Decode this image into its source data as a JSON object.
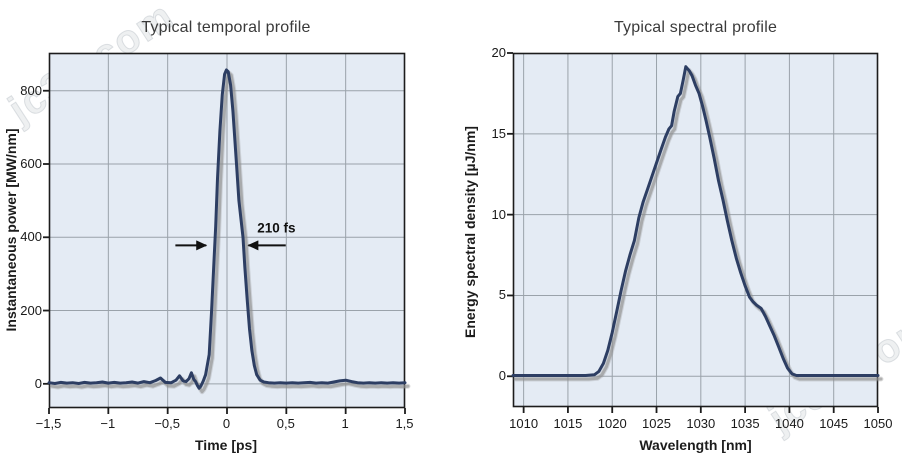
{
  "watermarks": [
    {
      "text": "jc35.com"
    },
    {
      "text": "jc35.com"
    }
  ],
  "colors": {
    "plot_background": "#e4ebf4",
    "grid": "#9aa2aa",
    "border": "#1c1c1c",
    "curve": "#2d3e63",
    "curve_shadow": "#8f8f8f",
    "text": "#1c1c1c",
    "title": "#3a3a3a",
    "annotation": "#111111"
  },
  "chart_data": [
    {
      "type": "line",
      "title": "Typical temporal profile",
      "xlabel": "Time [ps]",
      "ylabel": "Instantaneous power [MW/nm]",
      "xlim": [
        -1.5,
        1.5
      ],
      "ylim": [
        -66,
        903
      ],
      "grid": true,
      "legend": "none",
      "xticks": {
        "values": [
          -1.5,
          -1,
          -0.5,
          0,
          0.5,
          1,
          1.5
        ],
        "labels": [
          "−1,5",
          "−1",
          "−0,5",
          "0",
          "0,5",
          "1",
          "1,5"
        ]
      },
      "yticks": {
        "values": [
          0,
          200,
          400,
          600,
          800
        ],
        "labels": [
          "0",
          "200",
          "400",
          "600",
          "800"
        ]
      },
      "series": [
        {
          "name": "instantaneous-power",
          "x": [
            -1.5,
            -1.45,
            -1.4,
            -1.35,
            -1.3,
            -1.25,
            -1.2,
            -1.15,
            -1.1,
            -1.05,
            -1.0,
            -0.95,
            -0.9,
            -0.85,
            -0.8,
            -0.75,
            -0.7,
            -0.65,
            -0.6,
            -0.56,
            -0.52,
            -0.47,
            -0.43,
            -0.4,
            -0.37,
            -0.345,
            -0.32,
            -0.3,
            -0.28,
            -0.265,
            -0.25,
            -0.235,
            -0.22,
            -0.2,
            -0.18,
            -0.15,
            -0.13,
            -0.11,
            -0.095,
            -0.08,
            -0.06,
            -0.04,
            -0.02,
            -0.005,
            0.01,
            0.03,
            0.05,
            0.08,
            0.1,
            0.135,
            0.15,
            0.17,
            0.19,
            0.21,
            0.23,
            0.25,
            0.28,
            0.31,
            0.35,
            0.4,
            0.45,
            0.5,
            0.55,
            0.6,
            0.65,
            0.7,
            0.75,
            0.8,
            0.85,
            0.9,
            0.95,
            1.0,
            1.05,
            1.1,
            1.15,
            1.2,
            1.25,
            1.3,
            1.35,
            1.4,
            1.45,
            1.5
          ],
          "y": [
            3,
            1,
            4,
            2,
            3,
            1,
            4,
            2,
            3,
            5,
            2,
            4,
            2,
            3,
            5,
            2,
            6,
            3,
            9,
            16,
            4,
            3,
            10,
            22,
            8,
            6,
            14,
            30,
            12,
            6,
            -4,
            -12,
            -6,
            8,
            25,
            80,
            200,
            330,
            430,
            560,
            690,
            790,
            845,
            857,
            852,
            815,
            745,
            600,
            500,
            400,
            320,
            230,
            150,
            90,
            50,
            25,
            10,
            5,
            3,
            2,
            3,
            2,
            3,
            2,
            3,
            4,
            2,
            3,
            2,
            5,
            8,
            10,
            6,
            3,
            2,
            3,
            2,
            3,
            2,
            3,
            2,
            3
          ]
        }
      ],
      "annotation": {
        "text": "210 fs",
        "text_at": {
          "x": 0.42,
          "y": 424
        },
        "arrows": [
          {
            "from": {
              "x": -0.435,
              "y": 378
            },
            "to": {
              "x": -0.175,
              "y": 378
            }
          },
          {
            "from": {
              "x": 0.495,
              "y": 378
            },
            "to": {
              "x": 0.18,
              "y": 378
            }
          }
        ]
      }
    },
    {
      "type": "line",
      "title": "Typical spectral profile",
      "xlabel": "Wavelength [nm]",
      "ylabel": "Energy spectral density [µJ/nm]",
      "xlim": [
        1008.8,
        1050
      ],
      "ylim": [
        -1.9,
        20
      ],
      "grid": true,
      "legend": "none",
      "xticks": {
        "values": [
          1010,
          1015,
          1020,
          1025,
          1030,
          1035,
          1040,
          1045,
          1050
        ],
        "labels": [
          "1010",
          "1015",
          "1020",
          "1025",
          "1030",
          "1035",
          "1040",
          "1045",
          "1050"
        ]
      },
      "yticks": {
        "values": [
          0,
          5,
          10,
          15,
          20
        ],
        "labels": [
          "0",
          "5",
          "10",
          "15",
          "20"
        ]
      },
      "series": [
        {
          "name": "energy-spectral-density",
          "x": [
            1008.8,
            1010,
            1012,
            1014,
            1016,
            1017,
            1018,
            1018.5,
            1019,
            1019.5,
            1020,
            1020.5,
            1021,
            1021.5,
            1022,
            1022.5,
            1023,
            1023.5,
            1024,
            1024.5,
            1025,
            1025.5,
            1026,
            1026.4,
            1026.7,
            1027,
            1027.4,
            1027.7,
            1028,
            1028.3,
            1028.7,
            1029,
            1029.4,
            1029.8,
            1030.2,
            1030.6,
            1031,
            1031.5,
            1032,
            1032.5,
            1033,
            1033.5,
            1034,
            1034.5,
            1035,
            1035.5,
            1035.9,
            1036.3,
            1036.8,
            1037.3,
            1037.8,
            1038.3,
            1038.8,
            1039.3,
            1039.8,
            1040.3,
            1040.8,
            1041.5,
            1043,
            1045,
            1047,
            1050
          ],
          "y": [
            0.05,
            0.05,
            0.05,
            0.05,
            0.05,
            0.05,
            0.1,
            0.3,
            0.8,
            1.6,
            2.7,
            4.0,
            5.3,
            6.5,
            7.5,
            8.4,
            9.8,
            10.8,
            11.6,
            12.4,
            13.2,
            14.0,
            14.8,
            15.3,
            15.5,
            16.4,
            17.3,
            17.5,
            18.3,
            19.15,
            18.9,
            18.6,
            18.0,
            17.5,
            16.7,
            15.8,
            14.8,
            13.5,
            12.1,
            10.9,
            9.6,
            8.4,
            7.3,
            6.4,
            5.6,
            4.9,
            4.6,
            4.4,
            4.2,
            3.7,
            3.1,
            2.5,
            1.8,
            1.1,
            0.5,
            0.15,
            0.05,
            0.05,
            0.05,
            0.05,
            0.05,
            0.05
          ]
        }
      ],
      "annotation": null
    }
  ]
}
